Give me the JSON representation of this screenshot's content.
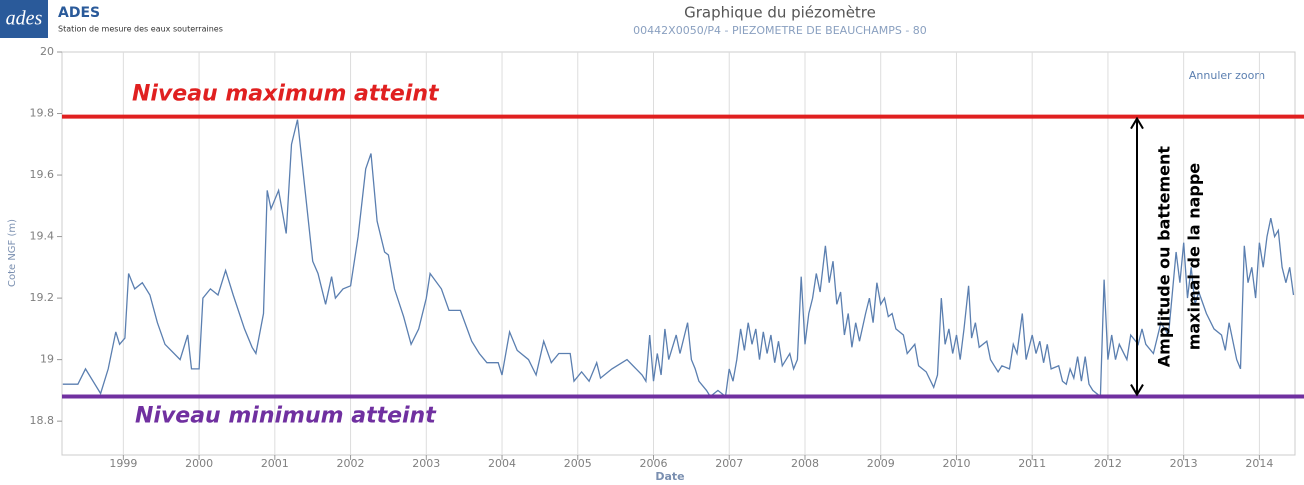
{
  "header": {
    "logo": "ades",
    "name": "ADES",
    "tagline": "Station de mesure des eaux souterraines"
  },
  "chart_data": {
    "type": "line",
    "title": "Graphique du piézomètre",
    "subtitle": "00442X0050/P4 - PIEZOMETRE DE BEAUCHAMPS - 80",
    "zoom_button": "Annuler zoom",
    "xlabel": "Date",
    "ylabel": "Cote NGF (m)",
    "color": "#5b7fb0",
    "grid": true,
    "xlim": [
      1998.19,
      2014.47
    ],
    "xticks": [
      1999,
      2000,
      2001,
      2002,
      2003,
      2004,
      2005,
      2006,
      2007,
      2008,
      2009,
      2010,
      2011,
      2012,
      2013,
      2014
    ],
    "ylim": [
      18.69,
      20
    ],
    "yticks": [
      18.8,
      19,
      19.2,
      19.4,
      19.6,
      19.8,
      20
    ],
    "x": [
      1998.2,
      1998.4,
      1998.5,
      1998.7,
      1998.8,
      1998.9,
      1998.95,
      1999.02,
      1999.07,
      1999.15,
      1999.25,
      1999.35,
      1999.45,
      1999.55,
      1999.75,
      1999.85,
      1999.9,
      2000.0,
      2000.05,
      2000.15,
      2000.25,
      2000.35,
      2000.45,
      2000.6,
      2000.7,
      2000.75,
      2000.85,
      2000.9,
      2000.95,
      2001.05,
      2001.15,
      2001.22,
      2001.3,
      2001.4,
      2001.5,
      2001.57,
      2001.67,
      2001.75,
      2001.8,
      2001.9,
      2002.0,
      2002.1,
      2002.2,
      2002.27,
      2002.35,
      2002.45,
      2002.5,
      2002.58,
      2002.7,
      2002.8,
      2002.9,
      2003.0,
      2003.05,
      2003.2,
      2003.3,
      2003.45,
      2003.6,
      2003.7,
      2003.8,
      2003.95,
      2004.0,
      2004.1,
      2004.2,
      2004.35,
      2004.45,
      2004.55,
      2004.65,
      2004.75,
      2004.9,
      2004.95,
      2005.05,
      2005.15,
      2005.25,
      2005.3,
      2005.45,
      2005.65,
      2005.85,
      2005.9,
      2005.95,
      2006.0,
      2006.05,
      2006.1,
      2006.15,
      2006.2,
      2006.3,
      2006.35,
      2006.45,
      2006.5,
      2006.55,
      2006.6,
      2006.7,
      2006.75,
      2006.85,
      2006.95,
      2007.0,
      2007.05,
      2007.1,
      2007.15,
      2007.2,
      2007.25,
      2007.3,
      2007.35,
      2007.4,
      2007.45,
      2007.5,
      2007.55,
      2007.6,
      2007.65,
      2007.7,
      2007.8,
      2007.85,
      2007.9,
      2007.95,
      2008.0,
      2008.05,
      2008.1,
      2008.15,
      2008.2,
      2008.27,
      2008.32,
      2008.37,
      2008.42,
      2008.47,
      2008.52,
      2008.57,
      2008.62,
      2008.67,
      2008.72,
      2008.8,
      2008.85,
      2008.9,
      2008.95,
      2009.0,
      2009.05,
      2009.1,
      2009.15,
      2009.2,
      2009.3,
      2009.35,
      2009.45,
      2009.5,
      2009.6,
      2009.7,
      2009.75,
      2009.8,
      2009.85,
      2009.9,
      2009.95,
      2010.0,
      2010.05,
      2010.1,
      2010.16,
      2010.2,
      2010.25,
      2010.3,
      2010.4,
      2010.45,
      2010.5,
      2010.55,
      2010.6,
      2010.7,
      2010.75,
      2010.8,
      2010.87,
      2010.92,
      2011.0,
      2011.05,
      2011.1,
      2011.15,
      2011.2,
      2011.25,
      2011.35,
      2011.4,
      2011.45,
      2011.5,
      2011.55,
      2011.6,
      2011.65,
      2011.7,
      2011.75,
      2011.8,
      2011.9,
      2011.95,
      2012.0,
      2012.05,
      2012.1,
      2012.15,
      2012.25,
      2012.3,
      2012.4,
      2012.45,
      2012.5,
      2012.6,
      2012.7,
      2012.8,
      2012.9,
      2012.95,
      2013.0,
      2013.05,
      2013.1,
      2013.15,
      2013.2,
      2013.3,
      2013.4,
      2013.5,
      2013.55,
      2013.6,
      2013.7,
      2013.75,
      2013.8,
      2013.85,
      2013.9,
      2013.95,
      2014.0,
      2014.05,
      2014.1,
      2014.15,
      2014.2,
      2014.25,
      2014.3,
      2014.35,
      2014.4,
      2014.45
    ],
    "values": [
      18.92,
      18.92,
      18.97,
      18.89,
      18.97,
      19.09,
      19.05,
      19.07,
      19.28,
      19.23,
      19.25,
      19.21,
      19.12,
      19.05,
      19.0,
      19.08,
      18.97,
      18.97,
      19.2,
      19.23,
      19.21,
      19.29,
      19.21,
      19.1,
      19.04,
      19.02,
      19.15,
      19.55,
      19.49,
      19.55,
      19.41,
      19.7,
      19.78,
      19.55,
      19.32,
      19.28,
      19.18,
      19.27,
      19.2,
      19.23,
      19.24,
      19.4,
      19.62,
      19.67,
      19.45,
      19.35,
      19.34,
      19.23,
      19.14,
      19.05,
      19.1,
      19.2,
      19.28,
      19.23,
      19.16,
      19.16,
      19.06,
      19.02,
      18.99,
      18.99,
      18.95,
      19.09,
      19.03,
      19.0,
      18.95,
      19.06,
      18.99,
      19.02,
      19.02,
      18.93,
      18.96,
      18.93,
      18.99,
      18.94,
      18.97,
      19.0,
      18.95,
      18.93,
      19.08,
      18.93,
      19.02,
      18.95,
      19.1,
      19.0,
      19.08,
      19.02,
      19.12,
      19.0,
      18.97,
      18.93,
      18.9,
      18.88,
      18.9,
      18.88,
      18.97,
      18.93,
      19.0,
      19.1,
      19.03,
      19.12,
      19.05,
      19.1,
      19.0,
      19.09,
      19.02,
      19.08,
      18.99,
      19.06,
      18.98,
      19.02,
      18.97,
      19.0,
      19.27,
      19.05,
      19.15,
      19.2,
      19.28,
      19.22,
      19.37,
      19.25,
      19.32,
      19.18,
      19.22,
      19.08,
      19.15,
      19.04,
      19.12,
      19.06,
      19.15,
      19.2,
      19.12,
      19.25,
      19.18,
      19.2,
      19.14,
      19.15,
      19.1,
      19.08,
      19.02,
      19.05,
      18.98,
      18.96,
      18.91,
      18.95,
      19.2,
      19.05,
      19.1,
      19.02,
      19.08,
      19.0,
      19.1,
      19.24,
      19.07,
      19.12,
      19.04,
      19.06,
      19.0,
      18.98,
      18.96,
      18.98,
      18.97,
      19.05,
      19.02,
      19.15,
      19.0,
      19.08,
      19.02,
      19.06,
      18.99,
      19.05,
      18.97,
      18.98,
      18.93,
      18.92,
      18.97,
      18.94,
      19.01,
      18.93,
      19.01,
      18.92,
      18.9,
      18.88,
      19.26,
      19.0,
      19.08,
      19.0,
      19.05,
      19.0,
      19.08,
      19.05,
      19.1,
      19.05,
      19.02,
      19.12,
      19.08,
      19.35,
      19.25,
      19.38,
      19.2,
      19.3,
      19.18,
      19.22,
      19.15,
      19.1,
      19.08,
      19.03,
      19.12,
      19.0,
      18.97,
      19.37,
      19.25,
      19.3,
      19.2,
      19.38,
      19.3,
      19.4,
      19.46,
      19.4,
      19.42,
      19.3,
      19.25,
      19.3,
      19.21
    ],
    "hlines": [
      {
        "value": 19.79,
        "label": "Niveau maximum atteint",
        "color": "#e02020"
      },
      {
        "value": 18.88,
        "label": "Niveau minimum atteint",
        "color": "#7030a0"
      }
    ],
    "amplitude_label": [
      "Amplitude ou battement",
      "maximal de la nappe"
    ]
  }
}
